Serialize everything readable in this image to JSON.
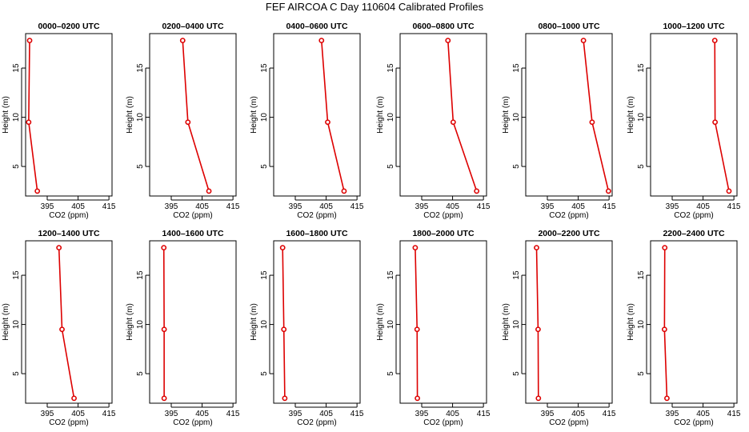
{
  "header": {
    "title": "FEF AIRCOA C  Day 110604  Calibrated Profiles"
  },
  "chart_data": {
    "type": "line",
    "xlabel": "CO2 (ppm)",
    "ylabel": "Height (m)",
    "xlim": [
      388,
      416
    ],
    "ylim": [
      2,
      18.5
    ],
    "xticks": [
      395,
      405,
      415
    ],
    "yticks": [
      5,
      10,
      15
    ],
    "series_color": "#dd0000",
    "panels": [
      {
        "title": "0000–0200 UTC",
        "xlim": [
          388,
          416
        ],
        "heights": [
          17.8,
          9.5,
          2.5
        ],
        "values": [
          389.3,
          389.0,
          391.8
        ]
      },
      {
        "title": "0200–0400 UTC",
        "xlim": [
          388,
          416
        ],
        "heights": [
          17.8,
          9.5,
          2.5
        ],
        "values": [
          398.7,
          400.4,
          407.2
        ]
      },
      {
        "title": "0400–0600 UTC",
        "xlim": [
          388,
          416
        ],
        "heights": [
          17.8,
          9.5,
          2.5
        ],
        "values": [
          403.5,
          405.5,
          410.8
        ]
      },
      {
        "title": "0600–0800 UTC",
        "xlim": [
          388,
          416
        ],
        "heights": [
          17.8,
          9.5,
          2.5
        ],
        "values": [
          403.5,
          405.2,
          412.8
        ]
      },
      {
        "title": "0800–1000 UTC",
        "xlim": [
          388,
          416
        ],
        "heights": [
          17.8,
          9.5,
          2.5
        ],
        "values": [
          406.7,
          409.5,
          414.8
        ]
      },
      {
        "title": "1000–1200 UTC",
        "xlim": [
          388,
          416
        ],
        "heights": [
          17.8,
          9.5,
          2.5
        ],
        "values": [
          408.8,
          408.9,
          413.4
        ]
      },
      {
        "title": "1200–1400 UTC",
        "xlim": [
          388,
          416
        ],
        "heights": [
          17.8,
          9.5,
          2.5
        ],
        "values": [
          398.8,
          399.8,
          403.7
        ]
      },
      {
        "title": "1400–1600 UTC",
        "xlim": [
          388,
          416
        ],
        "heights": [
          17.8,
          9.5,
          2.5
        ],
        "values": [
          392.6,
          392.7,
          392.7
        ]
      },
      {
        "title": "1600–1800 UTC",
        "xlim": [
          388,
          416
        ],
        "heights": [
          17.8,
          9.5,
          2.5
        ],
        "values": [
          390.9,
          391.3,
          391.6
        ]
      },
      {
        "title": "1800–2000 UTC",
        "xlim": [
          388,
          416
        ],
        "heights": [
          17.8,
          9.5,
          2.5
        ],
        "values": [
          392.9,
          393.5,
          393.6
        ]
      },
      {
        "title": "2000–2200 UTC",
        "xlim": [
          388,
          416
        ],
        "heights": [
          17.8,
          9.5,
          2.5
        ],
        "values": [
          391.5,
          392.0,
          392.1
        ]
      },
      {
        "title": "2200–2400 UTC",
        "xlim": [
          388,
          416
        ],
        "heights": [
          17.8,
          9.5,
          2.5
        ],
        "values": [
          392.6,
          392.5,
          393.3
        ]
      }
    ]
  }
}
